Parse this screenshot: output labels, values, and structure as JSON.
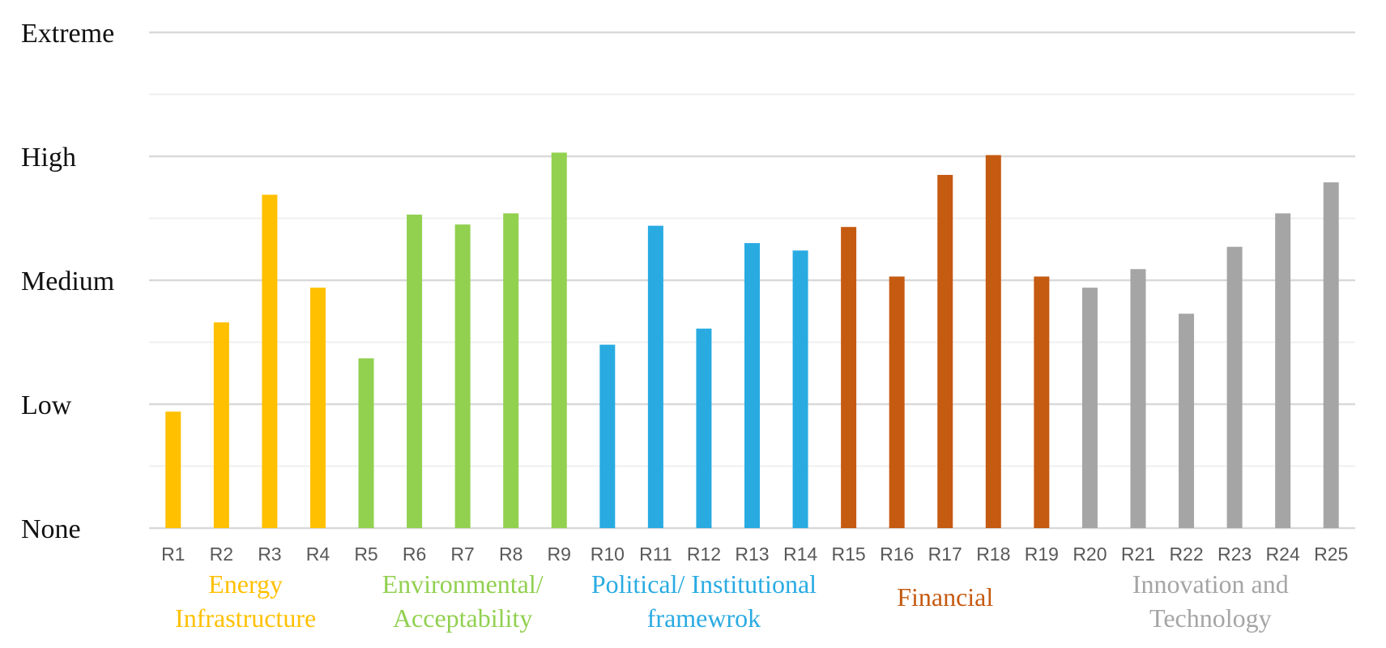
{
  "chart_data": {
    "type": "bar",
    "title": "",
    "xlabel": "",
    "ylabel": "",
    "y_levels": [
      "None",
      "Low",
      "Medium",
      "High",
      "Extreme"
    ],
    "ylim": [
      0,
      4
    ],
    "grid": true,
    "legend": "none",
    "categories": [
      "R1",
      "R2",
      "R3",
      "R4",
      "R5",
      "R6",
      "R7",
      "R8",
      "R9",
      "R10",
      "R11",
      "R12",
      "R13",
      "R14",
      "R15",
      "R16",
      "R17",
      "R18",
      "R19",
      "R20",
      "R21",
      "R22",
      "R23",
      "R24",
      "R25"
    ],
    "values": [
      0.94,
      1.66,
      2.69,
      1.94,
      1.37,
      2.53,
      2.45,
      2.54,
      3.03,
      1.48,
      2.44,
      1.61,
      2.3,
      2.24,
      2.43,
      2.03,
      2.85,
      3.01,
      2.03,
      1.94,
      2.09,
      1.73,
      2.27,
      2.54,
      2.79
    ],
    "groups": [
      {
        "name_lines": [
          "Energy",
          "Infrastructure"
        ],
        "color": "#FFC000",
        "categories": [
          "R1",
          "R2",
          "R3",
          "R4"
        ]
      },
      {
        "name_lines": [
          "Environmental/",
          "Acceptability"
        ],
        "color": "#92D050",
        "categories": [
          "R5",
          "R6",
          "R7",
          "R8",
          "R9"
        ]
      },
      {
        "name_lines": [
          "Political/ Institutional",
          "framewrok"
        ],
        "color": "#29ABE2",
        "categories": [
          "R10",
          "R11",
          "R12",
          "R13",
          "R14"
        ]
      },
      {
        "name_lines": [
          "Financial"
        ],
        "color": "#C55A11",
        "categories": [
          "R15",
          "R16",
          "R17",
          "R18",
          "R19"
        ]
      },
      {
        "name_lines": [
          "Innovation and",
          "Technology"
        ],
        "color": "#A5A5A5",
        "categories": [
          "R20",
          "R21",
          "R22",
          "R23",
          "R24",
          "R25"
        ]
      }
    ]
  }
}
